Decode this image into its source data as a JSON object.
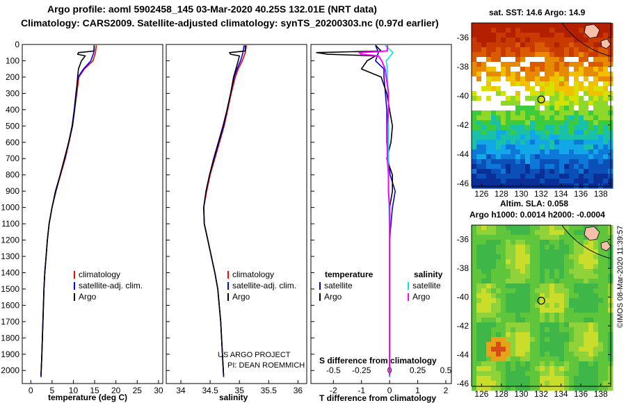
{
  "header": {
    "line1": "Argo profile: aoml 5902458_145 03-Mar-2020 40.25S 132.01E (NRT data)",
    "line2": "Climatology: CARS2009. Satellite-adjusted climatology: synTS_20200303.nc (0.97d earlier)"
  },
  "maps": {
    "sst_title": "sat. SST: 14.6 Argo: 14.9",
    "sla_title1": "Altim. SLA: 0.058",
    "sla_title2": "Argo h1000: 0.0014 h2000: -0.0004",
    "lon_ticks": [
      "126",
      "128",
      "130",
      "132",
      "134",
      "136",
      "138"
    ],
    "lat_ticks": [
      "-36",
      "-38",
      "-40",
      "-42",
      "-44",
      "-46"
    ],
    "profile_lon": 132.01,
    "profile_lat": -40.25,
    "colors": {
      "land": "#f5c0a8",
      "marker": "#000000"
    }
  },
  "watermark": {
    "stamp": "©IMOS 08-Mar-2020 11:39:57"
  },
  "credit": {
    "line1": "US ARGO PROJECT",
    "line2": "PI: DEAN ROEMMICH"
  },
  "colors": {
    "climatology": "#ff0000",
    "satellite": "#0000ff",
    "argo": "#000000",
    "sat_salinity": "#00e5e5",
    "argo_salinity": "#ff00ff"
  },
  "chart_data": [
    {
      "type": "line",
      "name": "temperature",
      "xlabel": "temperature (deg C)",
      "xlim": [
        -2,
        31
      ],
      "ylim": [
        2080,
        0
      ],
      "xticks": [
        "0",
        "5",
        "10",
        "15",
        "20",
        "25",
        "30"
      ],
      "yticks": [
        "0",
        "100",
        "200",
        "300",
        "400",
        "500",
        "600",
        "700",
        "800",
        "900",
        "1000",
        "1100",
        "1200",
        "1300",
        "1400",
        "1500",
        "1600",
        "1700",
        "1800",
        "1900",
        "2000"
      ],
      "legend": [
        "climatology",
        "satellite-adj. clim.",
        "Argo"
      ],
      "series": [
        {
          "name": "climatology",
          "depth": [
            5,
            50,
            100,
            150,
            200,
            300,
            400,
            500,
            600,
            700,
            800,
            900,
            1000,
            1100,
            1200,
            1300,
            1400,
            1500,
            1700,
            1900,
            2040
          ],
          "values": [
            15.4,
            15.2,
            14.6,
            12.6,
            11.3,
            10.8,
            10.3,
            9.8,
            9.0,
            8.1,
            7.0,
            5.9,
            5.0,
            4.3,
            3.9,
            3.6,
            3.3,
            3.1,
            2.85,
            2.6,
            2.4
          ]
        },
        {
          "name": "satellite-adj. clim.",
          "depth": [
            5,
            50,
            100,
            150,
            200,
            300,
            400,
            500,
            600,
            700,
            800,
            900,
            1000,
            1100,
            1200,
            1300,
            1400,
            1500,
            1700,
            1900,
            2040
          ],
          "values": [
            14.9,
            14.8,
            14.1,
            12.4,
            11.1,
            10.6,
            10.2,
            9.7,
            8.9,
            8.0,
            6.9,
            5.9,
            5.0,
            4.3,
            3.9,
            3.6,
            3.3,
            3.1,
            2.85,
            2.6,
            2.4
          ]
        },
        {
          "name": "Argo",
          "depth": [
            5,
            40,
            50,
            60,
            70,
            100,
            150,
            200,
            300,
            400,
            500,
            600,
            700,
            800,
            900,
            1000,
            1100,
            1200,
            1300,
            1400,
            1500,
            1700,
            1900,
            2030
          ],
          "values": [
            14.9,
            14.9,
            11.2,
            11.0,
            12.8,
            11.9,
            11.2,
            11.0,
            10.7,
            10.3,
            9.8,
            8.9,
            7.9,
            6.9,
            5.8,
            5.0,
            4.3,
            3.9,
            3.6,
            3.3,
            3.1,
            2.85,
            2.6,
            2.4
          ]
        }
      ]
    },
    {
      "type": "line",
      "name": "salinity",
      "xlabel": "salinity",
      "xlim": [
        33.75,
        36.15
      ],
      "ylim": [
        2080,
        0
      ],
      "xticks": [
        "34",
        "34.5",
        "35",
        "35.5",
        "36"
      ],
      "legend": [
        "climatology",
        "satellite-adj. clim.",
        "Argo"
      ],
      "series": [
        {
          "name": "climatology",
          "depth": [
            5,
            50,
            100,
            150,
            200,
            300,
            400,
            500,
            600,
            700,
            800,
            900,
            1000,
            1100,
            1200,
            1300,
            1400,
            1500,
            1700,
            1900,
            2040
          ],
          "values": [
            35.12,
            35.1,
            35.05,
            34.98,
            34.93,
            34.86,
            34.8,
            34.74,
            34.66,
            34.58,
            34.5,
            34.44,
            34.39,
            34.4,
            34.46,
            34.52,
            34.58,
            34.63,
            34.68,
            34.71,
            34.73
          ]
        },
        {
          "name": "satellite-adj. clim.",
          "depth": [
            5,
            50,
            100,
            150,
            200,
            300,
            400,
            500,
            600,
            700,
            800,
            900,
            1000,
            1100,
            1200,
            1300,
            1400,
            1500,
            1700,
            1900,
            2040
          ],
          "values": [
            35.08,
            35.06,
            35.02,
            34.96,
            34.91,
            34.85,
            34.79,
            34.73,
            34.65,
            34.57,
            34.49,
            34.43,
            34.39,
            34.4,
            34.46,
            34.52,
            34.58,
            34.63,
            34.68,
            34.71,
            34.73
          ]
        },
        {
          "name": "Argo",
          "depth": [
            5,
            40,
            50,
            60,
            70,
            100,
            150,
            200,
            300,
            400,
            500,
            600,
            700,
            800,
            900,
            1000,
            1100,
            1200,
            1300,
            1400,
            1500,
            1700,
            1900,
            2030
          ],
          "values": [
            35.1,
            35.1,
            34.83,
            34.85,
            35.0,
            34.98,
            34.94,
            34.9,
            34.85,
            34.79,
            34.72,
            34.64,
            34.56,
            34.49,
            34.43,
            34.39,
            34.4,
            34.46,
            34.52,
            34.58,
            34.63,
            34.68,
            34.71,
            34.73
          ]
        }
      ]
    },
    {
      "type": "line",
      "name": "difference from climatology",
      "xlabel": "T difference from climatology",
      "xlabel_top": "S difference from climatology",
      "t_xlim": [
        -2.8,
        2.2
      ],
      "s_xlim": [
        -0.7,
        0.55
      ],
      "ylim": [
        2080,
        0
      ],
      "xticks_t": [
        "-2",
        "-1",
        "0",
        "1",
        "2"
      ],
      "xticks_s": [
        "-0.5",
        "-0.25",
        "0",
        "0.25",
        "0.5"
      ],
      "legend_temperature_title": "temperature",
      "legend_salinity_title": "salinity",
      "legend_temperature": [
        "satellite",
        "Argo"
      ],
      "legend_salinity": [
        "satellite",
        "Argo"
      ],
      "series": [
        {
          "name": "T satellite",
          "depth": [
            5,
            50,
            100,
            150,
            200,
            300,
            400,
            500,
            600,
            700,
            800,
            900,
            1000,
            1100,
            1200,
            1500,
            2040
          ],
          "values": [
            -0.5,
            -0.4,
            -0.5,
            -0.2,
            -0.2,
            -0.15,
            -0.1,
            -0.1,
            -0.1,
            -0.05,
            0.02,
            0.2,
            0.1,
            0.05,
            0.0,
            0.0,
            0.0
          ]
        },
        {
          "name": "T Argo",
          "depth": [
            5,
            40,
            50,
            60,
            70,
            100,
            150,
            200,
            300,
            400,
            500,
            600,
            700,
            800,
            900,
            1000,
            1100,
            1200,
            1500,
            2030
          ],
          "values": [
            -0.5,
            -0.3,
            -2.6,
            -2.2,
            -0.5,
            -0.8,
            -1.0,
            -0.3,
            -0.1,
            0.0,
            0.1,
            0.05,
            -0.1,
            0.1,
            0.1,
            0.0,
            0.0,
            0.0,
            0.0,
            0.0
          ]
        },
        {
          "name": "S satellite",
          "depth": [
            5,
            50,
            100,
            150,
            200,
            300,
            400,
            500,
            800,
            1200,
            1500,
            2040
          ],
          "values": [
            -0.04,
            0.03,
            -0.03,
            -0.02,
            -0.02,
            -0.01,
            -0.01,
            -0.01,
            -0.01,
            0.0,
            0.0,
            0.0
          ]
        },
        {
          "name": "S Argo",
          "depth": [
            5,
            40,
            50,
            60,
            70,
            100,
            150,
            200,
            300,
            400,
            500,
            600,
            700,
            800,
            900,
            1000,
            1200,
            1500,
            2030
          ],
          "values": [
            -0.02,
            -0.02,
            -0.27,
            -0.25,
            -0.1,
            -0.07,
            -0.04,
            -0.03,
            -0.01,
            -0.01,
            -0.02,
            -0.02,
            -0.02,
            -0.01,
            -0.01,
            0.0,
            0.0,
            0.0,
            0.0
          ]
        }
      ]
    }
  ]
}
